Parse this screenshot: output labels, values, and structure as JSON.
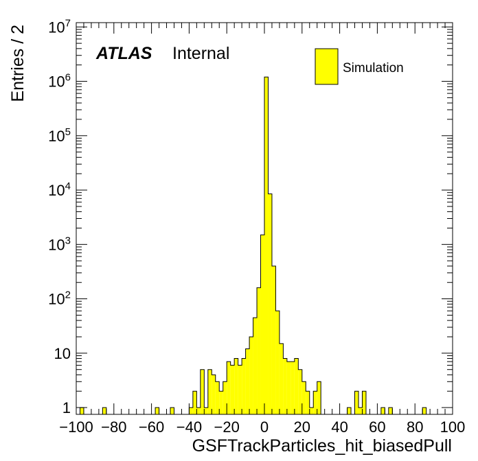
{
  "chart_data": {
    "type": "bar",
    "title": "",
    "xlabel": "GSFTrackParticles_hit_biasedPull",
    "ylabel": "Entries / 2",
    "xlim": [
      -100,
      100
    ],
    "ylim": [
      0.75,
      12000000
    ],
    "yscale": "log",
    "bin_width": 2,
    "bin_edges_low": [
      -98,
      -86,
      -58,
      -50,
      -40,
      -38,
      -36,
      -34,
      -32,
      -30,
      -28,
      -26,
      -24,
      -22,
      -20,
      -18,
      -16,
      -14,
      -12,
      -10,
      -8,
      -6,
      -4,
      -2,
      0,
      2,
      4,
      6,
      8,
      10,
      12,
      14,
      16,
      18,
      20,
      22,
      24,
      26,
      28,
      44,
      48,
      50,
      52,
      62,
      66,
      84
    ],
    "values": [
      1,
      1,
      1,
      1,
      1,
      2,
      1,
      5,
      1,
      5,
      4,
      3,
      2,
      3,
      7,
      6,
      8,
      6,
      8,
      12,
      20,
      45,
      160,
      1500,
      1200000,
      8500,
      400,
      60,
      15,
      8,
      7,
      7,
      8,
      5,
      3,
      2,
      1,
      2,
      3,
      1,
      2,
      1,
      2,
      1,
      1,
      1
    ],
    "fill_color": "#ffff00",
    "line_color": "#000000",
    "x_ticks": [
      "−100",
      "−80",
      "−60",
      "−40",
      "−20",
      "0",
      "20",
      "40",
      "60",
      "80",
      "100"
    ],
    "y_ticks": [
      {
        "value": 1,
        "label": "1",
        "exp": ""
      },
      {
        "value": 10,
        "label": "10",
        "exp": ""
      },
      {
        "value": 100,
        "label": "10",
        "exp": "2"
      },
      {
        "value": 1000,
        "label": "10",
        "exp": "3"
      },
      {
        "value": 10000,
        "label": "10",
        "exp": "4"
      },
      {
        "value": 100000,
        "label": "10",
        "exp": "5"
      },
      {
        "value": 1000000,
        "label": "10",
        "exp": "6"
      },
      {
        "value": 10000000,
        "label": "10",
        "exp": "7"
      }
    ],
    "legend": {
      "entries": [
        "Simulation"
      ],
      "position": "top-right"
    },
    "annotation": {
      "atlas": "ATLAS",
      "label": "Internal"
    },
    "grid": false
  }
}
